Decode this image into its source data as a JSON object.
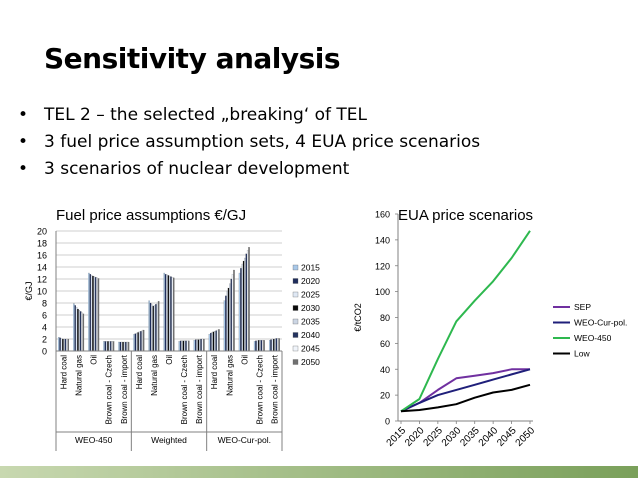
{
  "slide": {
    "title": "Sensitivity analysis",
    "bullets": [
      "TEL 2 – the selected „breaking‘ of TEL",
      "3 fuel price assumption sets, 4 EUA price scenarios",
      "3 scenarios of nuclear development"
    ]
  },
  "chart_data": [
    {
      "type": "bar",
      "title": "Fuel price assumptions €/GJ",
      "ylabel": "€/GJ",
      "ylim": [
        0,
        20
      ],
      "yticks": [
        0,
        2,
        4,
        6,
        8,
        10,
        12,
        14,
        16,
        18,
        20
      ],
      "groups": [
        "WEO-450",
        "Weighted",
        "WEO-Cur-pol."
      ],
      "categories": [
        "Hard coal",
        "Natural gas",
        "Oil",
        "Brown coal - Czech",
        "Brown coal - import"
      ],
      "series_names": [
        "2015",
        "2020",
        "2025",
        "2030",
        "2035",
        "2040",
        "2045",
        "2050"
      ],
      "colors": [
        "#a8c8e8",
        "#1f2d5c",
        "#dfe8f4",
        "#0a0a0a",
        "#ccd6e4",
        "#24335f",
        "#f0f4fa",
        "#707070"
      ],
      "values": {
        "WEO-450": {
          "Hard coal": [
            2.3,
            2.2,
            2.1,
            2.0,
            2.0,
            2.0,
            2.0,
            2.0
          ],
          "Natural gas": [
            7.9,
            7.6,
            7.3,
            7.0,
            6.8,
            6.6,
            6.4,
            6.2
          ],
          "Oil": [
            13.0,
            12.8,
            12.6,
            12.5,
            12.4,
            12.3,
            12.2,
            12.1
          ],
          "Brown coal - Czech": [
            1.6,
            1.6,
            1.6,
            1.6,
            1.6,
            1.6,
            1.6,
            1.6
          ],
          "Brown coal - import": [
            1.5,
            1.5,
            1.5,
            1.5,
            1.5,
            1.5,
            1.5,
            1.5
          ]
        },
        "Weighted": {
          "Hard coal": [
            2.8,
            2.9,
            3.0,
            3.1,
            3.2,
            3.3,
            3.4,
            3.5
          ],
          "Natural gas": [
            8.4,
            8.0,
            7.7,
            7.5,
            7.6,
            7.8,
            8.0,
            8.3
          ],
          "Oil": [
            13.0,
            12.8,
            12.7,
            12.6,
            12.5,
            12.4,
            12.3,
            12.2
          ],
          "Brown coal - Czech": [
            1.6,
            1.7,
            1.7,
            1.7,
            1.7,
            1.7,
            1.7,
            1.7
          ],
          "Brown coal - import": [
            1.8,
            1.9,
            1.9,
            1.9,
            1.9,
            2.0,
            2.0,
            2.0
          ]
        },
        "WEO-Cur-pol.": {
          "Hard coal": [
            2.8,
            3.0,
            3.1,
            3.2,
            3.3,
            3.4,
            3.5,
            3.6
          ],
          "Natural gas": [
            8.4,
            9.2,
            10.0,
            10.5,
            11.2,
            12.0,
            12.8,
            13.5
          ],
          "Oil": [
            13.0,
            13.8,
            14.5,
            15.0,
            15.5,
            16.2,
            16.8,
            17.3
          ],
          "Brown coal - Czech": [
            1.6,
            1.7,
            1.7,
            1.8,
            1.8,
            1.8,
            1.8,
            1.8
          ],
          "Brown coal - import": [
            1.8,
            1.9,
            2.0,
            2.0,
            2.0,
            2.1,
            2.1,
            2.1
          ]
        }
      }
    },
    {
      "type": "line",
      "title": "EUA price scenarios",
      "ylabel": "€/tCO2",
      "ylim": [
        0,
        160
      ],
      "yticks": [
        0,
        20,
        40,
        60,
        80,
        100,
        120,
        140,
        160
      ],
      "x": [
        "2015",
        "2020",
        "2025",
        "2030",
        "2035",
        "2040",
        "2045",
        "2050"
      ],
      "series": [
        {
          "name": "SEP",
          "color": "#7030a0",
          "values": [
            7.5,
            14,
            24,
            33,
            35,
            37,
            40,
            40
          ]
        },
        {
          "name": "WEO-Cur-pol.",
          "color": "#1f1f7a",
          "values": [
            7.5,
            14,
            20,
            24,
            28,
            32,
            36,
            40
          ]
        },
        {
          "name": "WEO-450",
          "color": "#2eb84f",
          "values": [
            7.5,
            17,
            48,
            77,
            93,
            108,
            126,
            147
          ]
        },
        {
          "name": "Low",
          "color": "#000000",
          "values": [
            7.5,
            8.5,
            10.5,
            13,
            18,
            22,
            24,
            28
          ]
        }
      ]
    }
  ]
}
